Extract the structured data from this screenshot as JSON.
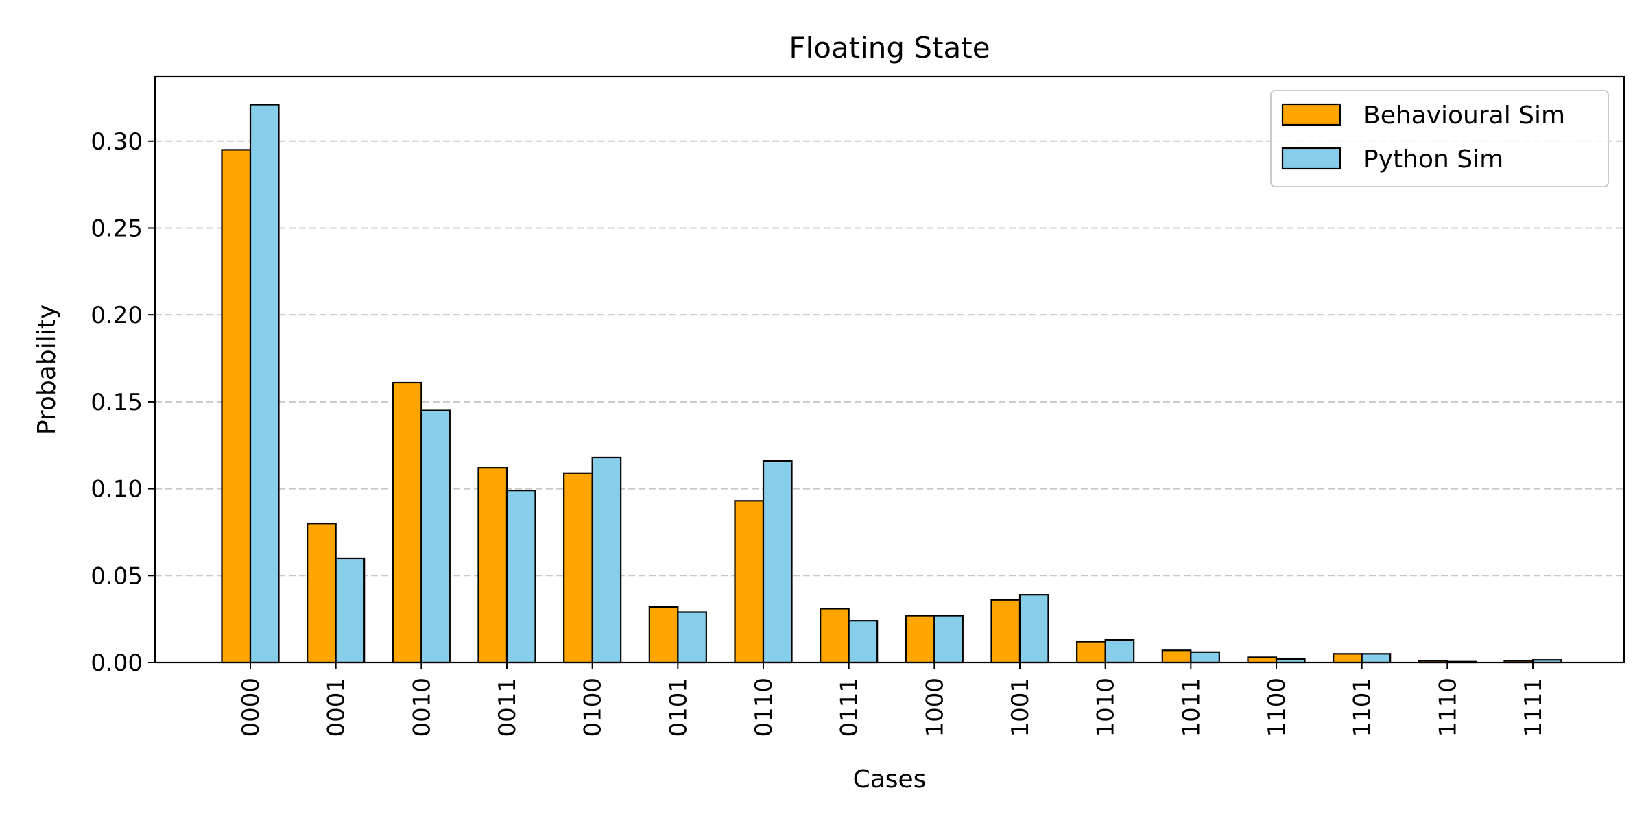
{
  "chart_data": {
    "type": "bar",
    "title": "Floating State",
    "xlabel": "Cases",
    "ylabel": "Probability",
    "ylim": [
      0,
      0.337
    ],
    "yticks": [
      "0.00",
      "0.05",
      "0.10",
      "0.15",
      "0.20",
      "0.25",
      "0.30"
    ],
    "grid": "y-dashed",
    "legend_position": "top-right",
    "categories": [
      "0000",
      "0001",
      "0010",
      "0011",
      "0100",
      "0101",
      "0110",
      "0111",
      "1000",
      "1001",
      "1010",
      "1011",
      "1100",
      "1101",
      "1110",
      "1111"
    ],
    "series": [
      {
        "name": "Behavioural Sim",
        "color": "#ffa500",
        "values": [
          0.295,
          0.08,
          0.161,
          0.112,
          0.109,
          0.032,
          0.093,
          0.031,
          0.027,
          0.036,
          0.012,
          0.007,
          0.003,
          0.005,
          0.001,
          0.001
        ]
      },
      {
        "name": "Python Sim",
        "color": "#87ceeb",
        "values": [
          0.321,
          0.06,
          0.145,
          0.099,
          0.118,
          0.029,
          0.116,
          0.024,
          0.027,
          0.039,
          0.013,
          0.006,
          0.002,
          0.005,
          0.0005,
          0.0015
        ]
      }
    ]
  }
}
